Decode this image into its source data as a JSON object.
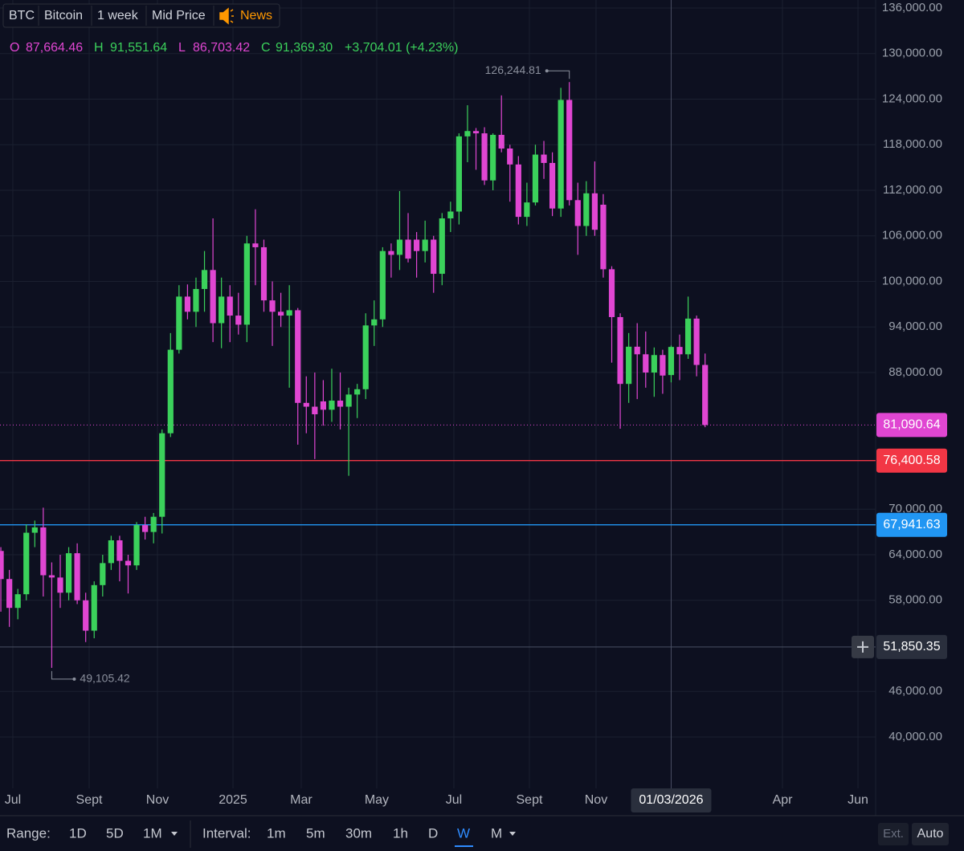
{
  "header": {
    "symbol": "BTC",
    "name": "Bitcoin",
    "interval": "1 week",
    "price_type": "Mid Price",
    "news": "News",
    "ohlc": {
      "letters": [
        "O",
        "H",
        "L",
        "C"
      ],
      "values": [
        "87,664.46",
        "91,551.64",
        "86,703.42",
        "91,369.30"
      ],
      "change": "+3,704.01 (+4.23%)"
    }
  },
  "toolbar": {
    "range_label": "Range:",
    "ranges": [
      "1D",
      "5D",
      "1M"
    ],
    "interval_label": "Interval:",
    "intervals": [
      "1m",
      "5m",
      "30m",
      "1h",
      "D",
      "W",
      "M"
    ],
    "right": [
      "Ext.",
      "Auto"
    ]
  },
  "chart_data": {
    "type": "candlestick",
    "up_color": "#3bd15b",
    "down_color": "#e046d2",
    "grid": true,
    "xlim": [
      -0.1,
      103.1
    ],
    "ylim": [
      33230,
      137060
    ],
    "xticks": [
      {
        "value": 1.41,
        "label": "Jul"
      },
      {
        "value": 10.41,
        "label": "Sept"
      },
      {
        "value": 18.46,
        "label": "Nov"
      },
      {
        "value": 27.36,
        "label": "2025"
      },
      {
        "value": 35.4,
        "label": "Mar"
      },
      {
        "value": 44.3,
        "label": "May"
      },
      {
        "value": 53.39,
        "label": "Jul"
      },
      {
        "value": 62.29,
        "label": "Sept"
      },
      {
        "value": 70.15,
        "label": "Nov"
      },
      {
        "value": 92.12,
        "label": "Apr"
      },
      {
        "value": 101.02,
        "label": "Jun"
      }
    ],
    "yticks": [
      {
        "value": 40000,
        "label": "40,000.00"
      },
      {
        "value": 46000,
        "label": "46,000.00"
      },
      {
        "value": 58000,
        "label": "58,000.00"
      },
      {
        "value": 64000,
        "label": "64,000.00"
      },
      {
        "value": 70000,
        "label": "70,000.00"
      },
      {
        "value": 88000,
        "label": "88,000.00"
      },
      {
        "value": 94000,
        "label": "94,000.00"
      },
      {
        "value": 100000,
        "label": "100,000.00"
      },
      {
        "value": 106000,
        "label": "106,000.00"
      },
      {
        "value": 112000,
        "label": "112,000.00"
      },
      {
        "value": 118000,
        "label": "118,000.00"
      },
      {
        "value": 124000,
        "label": "124,000.00"
      },
      {
        "value": 130000,
        "label": "130,000.00"
      },
      {
        "value": 136000,
        "label": "136,000.00"
      }
    ],
    "ohlc": [
      [
        64500,
        65000,
        56500,
        60800
      ],
      [
        60800,
        62000,
        54500,
        57000
      ],
      [
        57000,
        59500,
        55500,
        58800
      ],
      [
        58800,
        68000,
        58000,
        66900
      ],
      [
        66900,
        68500,
        65000,
        67600
      ],
      [
        67600,
        70200,
        58500,
        61300
      ],
      [
        61300,
        63000,
        49105.42,
        61000
      ],
      [
        61000,
        64000,
        57000,
        59000
      ],
      [
        59000,
        65000,
        58000,
        64200
      ],
      [
        64200,
        65500,
        57500,
        58000
      ],
      [
        58000,
        59000,
        52500,
        54000
      ],
      [
        54000,
        60500,
        53000,
        60000
      ],
      [
        60000,
        64000,
        58500,
        62900
      ],
      [
        62900,
        66500,
        62000,
        65900
      ],
      [
        65900,
        66500,
        60500,
        63200
      ],
      [
        63200,
        64000,
        58900,
        62600
      ],
      [
        62600,
        68300,
        62000,
        67900
      ],
      [
        67900,
        69000,
        66000,
        67000
      ],
      [
        67000,
        69500,
        65500,
        69000
      ],
      [
        69000,
        80500,
        66800,
        80000
      ],
      [
        80000,
        93200,
        79500,
        91000
      ],
      [
        91000,
        99500,
        90500,
        98000
      ],
      [
        98000,
        99600,
        95000,
        96000
      ],
      [
        96000,
        100500,
        94000,
        99000
      ],
      [
        99000,
        104000,
        96000,
        101500
      ],
      [
        101500,
        108300,
        92000,
        94500
      ],
      [
        94500,
        100500,
        91200,
        98000
      ],
      [
        98000,
        99500,
        92000,
        95500
      ],
      [
        95500,
        98500,
        93000,
        94300
      ],
      [
        94300,
        106000,
        92000,
        105000
      ],
      [
        105000,
        109500,
        99500,
        104500
      ],
      [
        104500,
        105500,
        96000,
        97500
      ],
      [
        97500,
        100000,
        91500,
        96000
      ],
      [
        96000,
        98500,
        94000,
        95500
      ],
      [
        95500,
        99500,
        86000,
        96200
      ],
      [
        96200,
        96500,
        78500,
        84000
      ],
      [
        84000,
        87500,
        80000,
        83500
      ],
      [
        83500,
        88000,
        76600,
        82500
      ],
      [
        84200,
        87000,
        81000,
        83100
      ],
      [
        83100,
        88500,
        81500,
        84300
      ],
      [
        84300,
        88000,
        80500,
        83500
      ],
      [
        83500,
        86000,
        74400,
        85100
      ],
      [
        85100,
        86500,
        82000,
        85800
      ],
      [
        85800,
        95800,
        84500,
        94200
      ],
      [
        94200,
        97500,
        91500,
        95000
      ],
      [
        95000,
        104500,
        94000,
        104000
      ],
      [
        104000,
        105000,
        100500,
        103500
      ],
      [
        103500,
        111900,
        101500,
        105500
      ],
      [
        105500,
        109000,
        102500,
        103000
      ],
      [
        105500,
        106500,
        100500,
        104000
      ],
      [
        104000,
        108000,
        102500,
        105500
      ],
      [
        105500,
        106000,
        98500,
        101000
      ],
      [
        101000,
        109000,
        99500,
        108300
      ],
      [
        108300,
        110500,
        106500,
        109200
      ],
      [
        109200,
        119500,
        107500,
        119100
      ],
      [
        119100,
        123200,
        115700,
        119800
      ],
      [
        119800,
        120200,
        114700,
        119500
      ],
      [
        119500,
        120300,
        112700,
        113300
      ],
      [
        113300,
        119500,
        112000,
        119300
      ],
      [
        119300,
        124500,
        117000,
        117500
      ],
      [
        117500,
        118000,
        110500,
        115400
      ],
      [
        115400,
        116500,
        107500,
        108500
      ],
      [
        108500,
        113000,
        107300,
        110400
      ],
      [
        110400,
        118000,
        110000,
        116700
      ],
      [
        116700,
        118500,
        113500,
        115600
      ],
      [
        115600,
        117000,
        108600,
        109600
      ],
      [
        109600,
        125500,
        108500,
        123900
      ],
      [
        123900,
        126244.81,
        110000,
        110700
      ],
      [
        110700,
        113000,
        103500,
        107300
      ],
      [
        107300,
        113200,
        106000,
        111600
      ],
      [
        111600,
        115800,
        106000,
        106800
      ],
      [
        110100,
        111500,
        100500,
        101600
      ],
      [
        101600,
        102000,
        89300,
        95300
      ],
      [
        95300,
        95800,
        80600,
        86500
      ],
      [
        86500,
        93200,
        84000,
        91400
      ],
      [
        91400,
        94500,
        84500,
        90400
      ],
      [
        90400,
        93400,
        86000,
        88000
      ],
      [
        88000,
        91300,
        84800,
        90300
      ],
      [
        90300,
        91000,
        85200,
        87600
      ],
      [
        87664.46,
        91551.64,
        86703.42,
        91369.3
      ],
      [
        91369.3,
        93000,
        87000,
        90400
      ],
      [
        90400,
        98000,
        89800,
        95100
      ],
      [
        95100,
        95500,
        87500,
        89000
      ],
      [
        89000,
        90500,
        80800,
        81090.64
      ]
    ],
    "annotations": [
      "126,244.81",
      "49,105.42"
    ],
    "price_lines": [
      {
        "value": 81090.64,
        "label": "81,090.64",
        "color": "#e046d2",
        "style": "dotted"
      },
      {
        "value": 76400.58,
        "label": "76,400.58",
        "color": "#f23645",
        "style": "solid"
      },
      {
        "value": 67941.63,
        "label": "67,941.63",
        "color": "#2196f3",
        "style": "solid"
      }
    ],
    "crosshair": {
      "x": {
        "value": 79,
        "label": "01/03/2026"
      },
      "y": {
        "value": 51850.35,
        "label": "51,850.35"
      }
    }
  }
}
